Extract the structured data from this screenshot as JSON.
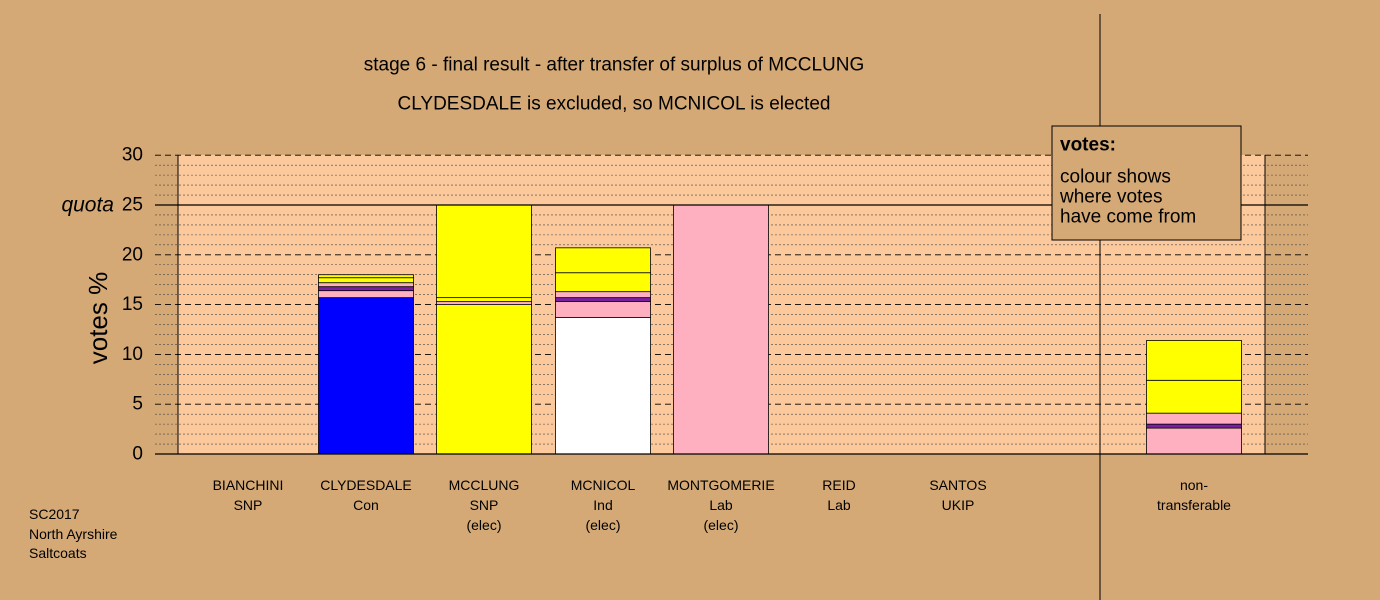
{
  "chart_data": {
    "type": "bar",
    "stacked": true,
    "title": "stage 6 - final result - after transfer of surplus of MCCLUNG",
    "subtitle": "CLYDESDALE is excluded, so MCNICOL is elected",
    "ylabel": "votes %",
    "ylim": [
      0,
      30
    ],
    "yticks": [
      0,
      5,
      10,
      15,
      20,
      25,
      30
    ],
    "quota_label": "quota",
    "quota_value": 25,
    "grid": true,
    "candidates": [
      {
        "name": "BIANCHINI",
        "party": "SNP",
        "status": ""
      },
      {
        "name": "CLYDESDALE",
        "party": "Con",
        "status": ""
      },
      {
        "name": "MCCLUNG",
        "party": "SNP",
        "status": "(elec)"
      },
      {
        "name": "MCNICOL",
        "party": "Ind",
        "status": "(elec)"
      },
      {
        "name": "MONTGOMERIE",
        "party": "Lab",
        "status": "(elec)"
      },
      {
        "name": "REID",
        "party": "Lab",
        "status": ""
      },
      {
        "name": "SANTOS",
        "party": "UKIP",
        "status": ""
      }
    ],
    "nontransferable": {
      "name": "non-",
      "party": "transferable"
    },
    "segment_colors": {
      "Con": "#0000ff",
      "SNP": "#ffff00",
      "Ind": "#ffffff",
      "Lab": "#ffb0c0",
      "UKIP": "#7b1fa2"
    },
    "stacks": [
      [],
      [
        {
          "value": 15.7,
          "color": "#0000ff"
        },
        {
          "value": 0.7,
          "color": "#ffb0c0"
        },
        {
          "value": 0.4,
          "color": "#7b1fa2"
        },
        {
          "value": 0.4,
          "color": "#ffb0c0"
        },
        {
          "value": 0.5,
          "color": "#ffff00"
        },
        {
          "value": 0.3,
          "color": "#ffff00"
        }
      ],
      [
        {
          "value": 15.0,
          "color": "#ffff00"
        },
        {
          "value": 0.3,
          "color": "#ffb0c0"
        },
        {
          "value": 0.4,
          "color": "#ffff00"
        },
        {
          "value": 9.3,
          "color": "#ffff00"
        }
      ],
      [
        {
          "value": 13.7,
          "color": "#ffffff"
        },
        {
          "value": 1.6,
          "color": "#ffb0c0"
        },
        {
          "value": 0.4,
          "color": "#7b1fa2"
        },
        {
          "value": 0.6,
          "color": "#ffb0c0"
        },
        {
          "value": 1.9,
          "color": "#ffff00"
        },
        {
          "value": 2.5,
          "color": "#ffff00"
        }
      ],
      [
        {
          "value": 25.0,
          "color": "#ffb0c0"
        }
      ],
      [],
      [],
      [
        {
          "value": 2.6,
          "color": "#ffb0c0"
        },
        {
          "value": 0.4,
          "color": "#7b1fa2"
        },
        {
          "value": 1.1,
          "color": "#ffb0c0"
        },
        {
          "value": 3.3,
          "color": "#ffff00"
        },
        {
          "value": 4.0,
          "color": "#ffff00"
        }
      ]
    ]
  },
  "legend": {
    "title": "votes:",
    "lines": [
      "colour shows",
      "where votes",
      "have come from"
    ]
  },
  "footer": {
    "lines": [
      "SC2017",
      "North Ayrshire",
      "Saltcoats"
    ]
  }
}
